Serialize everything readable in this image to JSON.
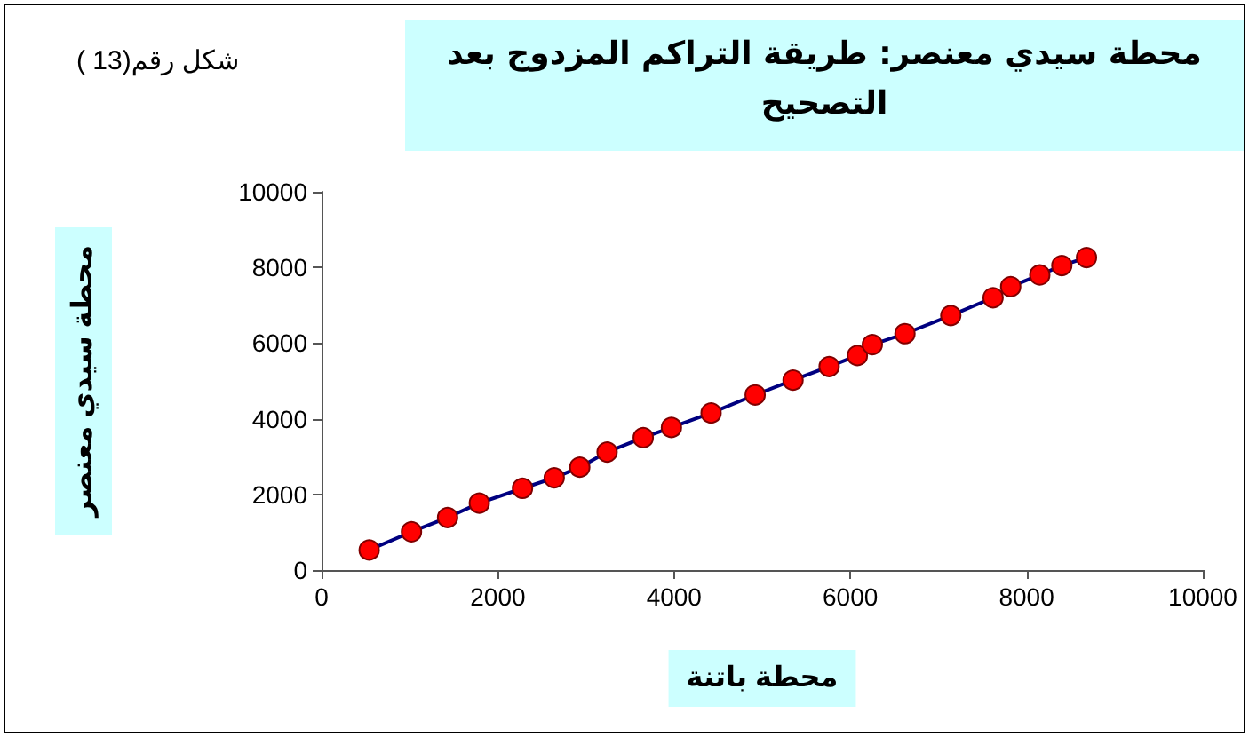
{
  "chart_data": {
    "type": "line",
    "title": "محطة سيدي معنصر: طريقة التراكم المزدوج بعد التصحيح",
    "annotations": [
      "شكل رقم(13 )"
    ],
    "xlabel": "محطة باتنة",
    "ylabel": "محطة سيدي معنصر",
    "x": [
      540,
      1020,
      1430,
      1790,
      2280,
      2640,
      2930,
      3240,
      3650,
      3970,
      4420,
      4920,
      5350,
      5760,
      6080,
      6250,
      6620,
      7140,
      7620,
      7820,
      8150,
      8400,
      8680
    ],
    "series": [
      {
        "color": "#000080",
        "values": [
          530,
          1010,
          1390,
          1770,
          2160,
          2440,
          2720,
          3120,
          3500,
          3770,
          4150,
          4630,
          5020,
          5380,
          5670,
          5960,
          6250,
          6730,
          7200,
          7490,
          7800,
          8050,
          8260
        ]
      }
    ],
    "marker": "circle",
    "xlim": [
      0,
      10000
    ],
    "xticks": [
      0,
      2000,
      4000,
      6000,
      8000,
      10000
    ],
    "ylim": [
      0,
      10000
    ],
    "yticks": [
      0,
      2000,
      4000,
      6000,
      8000,
      10000
    ],
    "grid": false
  }
}
